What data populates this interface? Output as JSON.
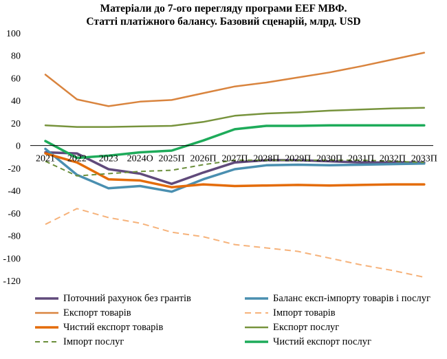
{
  "chart_data": {
    "type": "line",
    "title_lines": [
      "Матеріали до 7-ого перегляду програми EEF МВФ.",
      "Статті платіжного балансу. Базовий сценарій, млрд. USD"
    ],
    "categories": [
      "2021",
      "2022",
      "2023",
      "2024О",
      "2025П",
      "2026П",
      "2027П",
      "2028П",
      "2029П",
      "2030П",
      "2031П",
      "2032П",
      "2033П"
    ],
    "y_ticks": [
      "100",
      "80",
      "60",
      "40",
      "20",
      "0",
      "-20",
      "-40",
      "-60",
      "-80",
      "-100",
      "-120"
    ],
    "ylim": [
      -120,
      100
    ],
    "grid": false,
    "legend_position": "bottom",
    "series": [
      {
        "name": "Поточний рахунок без грантів",
        "color": "#604a7b",
        "width": 3.5,
        "dash": "",
        "values": [
          -6,
          -7,
          -21,
          -25,
          -34,
          -24,
          -15,
          -13,
          -13,
          -14,
          -15,
          -15,
          -15
        ]
      },
      {
        "name": "Баланс експ-імпорту товарів і послуг",
        "color": "#4a8fb0",
        "width": 3.5,
        "dash": "",
        "values": [
          -3,
          -26,
          -38,
          -36,
          -41,
          -30,
          -21,
          -17.5,
          -17,
          -17.5,
          -17,
          -16.5,
          -16
        ]
      },
      {
        "name": "Експорт товарів",
        "color": "#d9843e",
        "width": 2.5,
        "dash": "",
        "values": [
          63,
          41,
          35,
          39,
          40.5,
          46.5,
          52.5,
          56,
          60.5,
          65,
          70.5,
          76.5,
          82.5
        ]
      },
      {
        "name": "Імпорт товарів",
        "color": "#f6b27a",
        "width": 2,
        "dash": "9 6",
        "values": [
          -70,
          -56,
          -64,
          -69,
          -77,
          -81,
          -88,
          -91,
          -94,
          -100,
          -106,
          -111,
          -117
        ]
      },
      {
        "name": "Чистий експорт товарів",
        "color": "#e46c0a",
        "width": 3.5,
        "dash": "",
        "values": [
          -7,
          -15,
          -30,
          -31,
          -37,
          -34.5,
          -36,
          -35.5,
          -35,
          -35.5,
          -35,
          -34.5,
          -34.5
        ]
      },
      {
        "name": "Експорт послуг",
        "color": "#77933c",
        "width": 2.5,
        "dash": "",
        "values": [
          18,
          16.5,
          16.5,
          17,
          17.5,
          21,
          26.5,
          28.5,
          29.5,
          31,
          32,
          33,
          33.5
        ]
      },
      {
        "name": "Імпорт послуг",
        "color": "#6a8e3a",
        "width": 2,
        "dash": "7 5",
        "values": [
          -14,
          -27,
          -25,
          -23,
          -22,
          -17,
          -13,
          -13,
          -13,
          -13,
          -13,
          -14,
          -15
        ]
      },
      {
        "name": "Чистий експорт послуг",
        "color": "#1eab5a",
        "width": 3.5,
        "dash": "",
        "values": [
          4,
          -11,
          -9,
          -6,
          -4.5,
          4.5,
          14.5,
          17.5,
          17.5,
          18,
          18,
          18,
          18
        ]
      }
    ]
  }
}
